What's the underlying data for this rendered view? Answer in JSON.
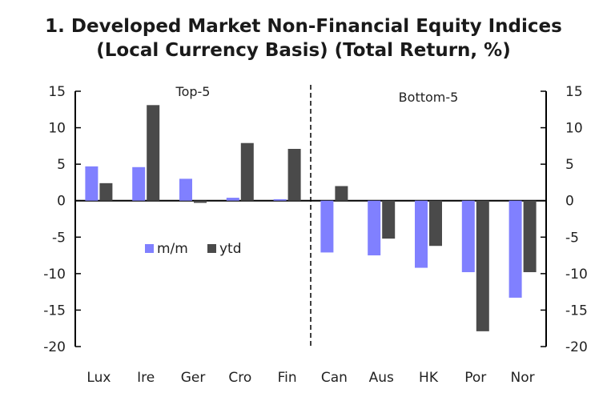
{
  "chart_data": {
    "type": "bar",
    "title_line1": "1. Developed Market Non-Financial Equity Indices",
    "title_line2": "(Local Currency Basis) (Total Return, %)",
    "categories": [
      "Lux",
      "Ire",
      "Ger",
      "Cro",
      "Fin",
      "Can",
      "Aus",
      "HK",
      "Por",
      "Nor"
    ],
    "series": [
      {
        "name": "m/m",
        "color": "#8080ff",
        "values": [
          4.7,
          4.6,
          3.0,
          0.4,
          0.2,
          -7.1,
          -7.5,
          -9.2,
          -9.8,
          -13.3
        ]
      },
      {
        "name": "ytd",
        "color": "#4a4a4a",
        "values": [
          2.4,
          13.1,
          -0.3,
          7.9,
          7.1,
          2.0,
          -5.2,
          -6.2,
          -17.9,
          -9.8
        ]
      }
    ],
    "ylim": [
      -20,
      15
    ],
    "yticks": [
      15,
      10,
      5,
      0,
      -5,
      -10,
      -15,
      -20
    ],
    "group_labels": [
      "Top-5",
      "Bottom-5"
    ],
    "legend_position": "center-left"
  }
}
